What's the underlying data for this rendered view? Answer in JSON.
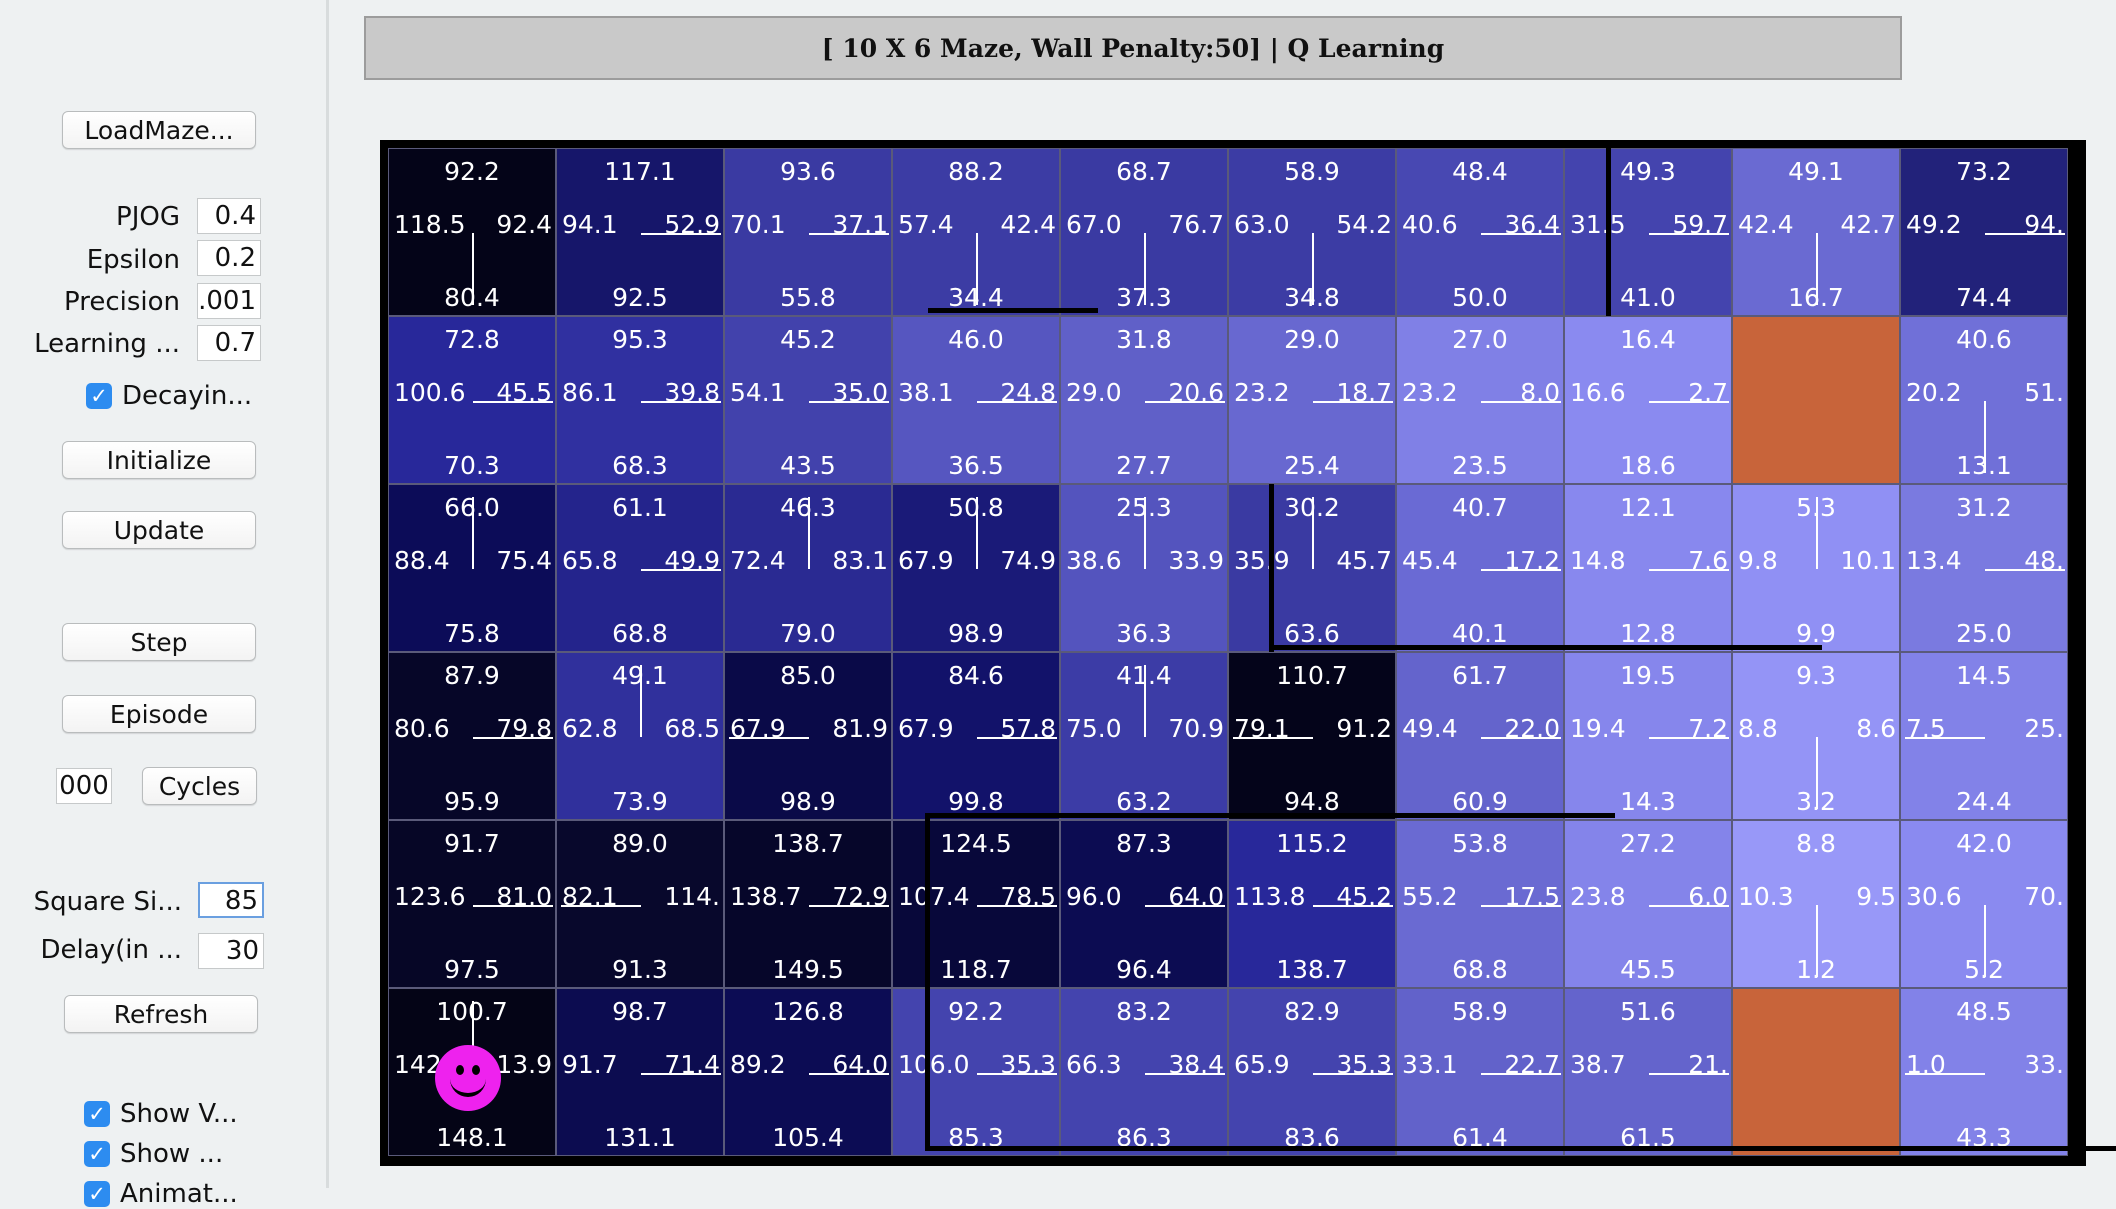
{
  "controls": {
    "load_maze": "LoadMaze...",
    "params": [
      {
        "label": "PJOG",
        "value": "0.4"
      },
      {
        "label": "Epsilon",
        "value": "0.2"
      },
      {
        "label": "Precision",
        "value": ".001"
      },
      {
        "label": "Learning ...",
        "value": "0.7"
      }
    ],
    "decaying_label": "Decayin...",
    "initialize": "Initialize",
    "update": "Update",
    "step": "Step",
    "episode": "Episode",
    "cycles_value": "000",
    "cycles": "Cycles",
    "square_size_label": "Square Si...",
    "square_size_value": "85",
    "delay_label": "Delay(in ...",
    "delay_value": "30",
    "refresh": "Refresh",
    "show_v_label": "Show V...",
    "show_label": "Show ...",
    "animate_label": "Animat..."
  },
  "maze": {
    "title": "[ 10 X 6 Maze, Wall Penalty:50] |  Q Learning",
    "cols": 10,
    "rows": 6,
    "agent": {
      "row": 5,
      "col": 0
    },
    "goal_color": "#c8643a",
    "cells": [
      [
        {
          "n": "92.2",
          "w": "118.5",
          "e": "92.4",
          "s": "80.4",
          "color": "#040418",
          "policy": "S"
        },
        {
          "n": "117.1",
          "w": "94.1",
          "e": "52.9",
          "s": "92.5",
          "color": "#16166a",
          "policy": "E"
        },
        {
          "n": "93.6",
          "w": "70.1",
          "e": "37.1",
          "s": "55.8",
          "color": "#3a3aa2",
          "policy": "E"
        },
        {
          "n": "88.2",
          "w": "57.4",
          "e": "42.4",
          "s": "34.4",
          "color": "#3c3ca4",
          "policy": "S"
        },
        {
          "n": "68.7",
          "w": "67.0",
          "e": "76.7",
          "s": "37.3",
          "color": "#3a3aa2",
          "policy": "S"
        },
        {
          "n": "58.9",
          "w": "63.0",
          "e": "54.2",
          "s": "34.8",
          "color": "#3c3ca4",
          "policy": "S"
        },
        {
          "n": "48.4",
          "w": "40.6",
          "e": "36.4",
          "s": "50.0",
          "color": "#4848b2",
          "policy": "E"
        },
        {
          "n": "49.3",
          "w": "31.5",
          "e": "59.7",
          "s": "41.0",
          "color": "#4444ae",
          "policy": "E"
        },
        {
          "n": "49.1",
          "w": "42.4",
          "e": "42.7",
          "s": "16.7",
          "color": "#6a6ad2",
          "policy": "S"
        },
        {
          "n": "73.2",
          "w": "49.2",
          "e": "94.",
          "s": "74.4",
          "color": "#22227a",
          "policy": "E"
        }
      ],
      [
        {
          "n": "72.8",
          "w": "100.6",
          "e": "45.5",
          "s": "70.3",
          "color": "#28289a",
          "policy": "E"
        },
        {
          "n": "95.3",
          "w": "86.1",
          "e": "39.8",
          "s": "68.3",
          "color": "#3030a0",
          "policy": "E"
        },
        {
          "n": "45.2",
          "w": "54.1",
          "e": "35.0",
          "s": "43.5",
          "color": "#4242ac",
          "policy": "E"
        },
        {
          "n": "46.0",
          "w": "38.1",
          "e": "24.8",
          "s": "36.5",
          "color": "#5656c0",
          "policy": "E"
        },
        {
          "n": "31.8",
          "w": "29.0",
          "e": "20.6",
          "s": "27.7",
          "color": "#6060c8",
          "policy": "E"
        },
        {
          "n": "29.0",
          "w": "23.2",
          "e": "18.7",
          "s": "25.4",
          "color": "#6868d0",
          "policy": "E"
        },
        {
          "n": "27.0",
          "w": "23.2",
          "e": "8.0",
          "s": "23.5",
          "color": "#8080e6",
          "policy": "E"
        },
        {
          "n": "16.4",
          "w": "16.6",
          "e": "2.7",
          "s": "18.6",
          "color": "#8a8af0",
          "policy": "E"
        },
        {
          "goal": true
        },
        {
          "n": "40.6",
          "w": "20.2",
          "e": "51.",
          "s": "13.1",
          "color": "#7070d8",
          "policy": "S"
        }
      ],
      [
        {
          "n": "66.0",
          "w": "88.4",
          "e": "75.4",
          "s": "75.8",
          "color": "#0c0c58",
          "policy": "N"
        },
        {
          "n": "61.1",
          "w": "65.8",
          "e": "49.9",
          "s": "68.8",
          "color": "#24248c",
          "policy": "E"
        },
        {
          "n": "46.3",
          "w": "72.4",
          "e": "83.1",
          "s": "79.0",
          "color": "#2a2a92",
          "policy": "N"
        },
        {
          "n": "50.8",
          "w": "67.9",
          "e": "74.9",
          "s": "98.9",
          "color": "#1a1a78",
          "policy": "N"
        },
        {
          "n": "25.3",
          "w": "38.6",
          "e": "33.9",
          "s": "36.3",
          "color": "#5454be",
          "policy": "N"
        },
        {
          "n": "30.2",
          "w": "35.9",
          "e": "45.7",
          "s": "63.6",
          "color": "#3a3aa2",
          "policy": "N"
        },
        {
          "n": "40.7",
          "w": "45.4",
          "e": "17.2",
          "s": "40.1",
          "color": "#6a6ad4",
          "policy": "E"
        },
        {
          "n": "12.1",
          "w": "14.8",
          "e": "7.6",
          "s": "12.8",
          "color": "#8888ee",
          "policy": "E"
        },
        {
          "n": "5.3",
          "w": "9.8",
          "e": "10.1",
          "s": "9.9",
          "color": "#9090f4",
          "policy": "N"
        },
        {
          "n": "31.2",
          "w": "13.4",
          "e": "48.",
          "s": "25.0",
          "color": "#7a7ae0",
          "policy": "E"
        }
      ],
      [
        {
          "n": "87.9",
          "w": "80.6",
          "e": "79.8",
          "s": "95.9",
          "color": "#060628",
          "policy": "E"
        },
        {
          "n": "49.1",
          "w": "62.8",
          "e": "68.5",
          "s": "73.9",
          "color": "#30309c",
          "policy": "N"
        },
        {
          "n": "85.0",
          "w": "67.9",
          "e": "81.9",
          "s": "98.9",
          "color": "#0a0a48",
          "policy": "W"
        },
        {
          "n": "84.6",
          "w": "67.9",
          "e": "57.8",
          "s": "99.8",
          "color": "#12126a",
          "policy": "E"
        },
        {
          "n": "41.4",
          "w": "75.0",
          "e": "70.9",
          "s": "63.2",
          "color": "#3c3ca6",
          "policy": "N"
        },
        {
          "n": "110.7",
          "w": "79.1",
          "e": "91.2",
          "s": "94.8",
          "color": "#04041a",
          "policy": "W"
        },
        {
          "n": "61.7",
          "w": "49.4",
          "e": "22.0",
          "s": "60.9",
          "color": "#6464cc",
          "policy": "E"
        },
        {
          "n": "19.5",
          "w": "19.4",
          "e": "7.2",
          "s": "14.3",
          "color": "#8686ec",
          "policy": "E"
        },
        {
          "n": "9.3",
          "w": "8.8",
          "e": "8.6",
          "s": "3.2",
          "color": "#9494f6",
          "policy": "S"
        },
        {
          "n": "14.5",
          "w": "7.5",
          "e": "25.",
          "s": "24.4",
          "color": "#8282e8",
          "policy": "W"
        }
      ],
      [
        {
          "n": "91.7",
          "w": "123.6",
          "e": "81.0",
          "s": "97.5",
          "color": "#060626",
          "policy": "E"
        },
        {
          "n": "89.0",
          "w": "82.1",
          "e": "114.",
          "s": "91.3",
          "color": "#08082c",
          "policy": "W"
        },
        {
          "n": "138.7",
          "w": "138.7",
          "e": "72.9",
          "s": "149.5",
          "color": "#06062a",
          "policy": "E"
        },
        {
          "n": "124.5",
          "w": "107.4",
          "e": "78.5",
          "s": "118.7",
          "color": "#08083a",
          "policy": "E"
        },
        {
          "n": "87.3",
          "w": "96.0",
          "e": "64.0",
          "s": "96.4",
          "color": "#0c0c52",
          "policy": "E"
        },
        {
          "n": "115.2",
          "w": "113.8",
          "e": "45.2",
          "s": "138.7",
          "color": "#28289a",
          "policy": "E"
        },
        {
          "n": "53.8",
          "w": "55.2",
          "e": "17.5",
          "s": "68.8",
          "color": "#6a6ad2",
          "policy": "E"
        },
        {
          "n": "27.2",
          "w": "23.8",
          "e": "6.0",
          "s": "45.5",
          "color": "#8484ea",
          "policy": "E"
        },
        {
          "n": "8.8",
          "w": "10.3",
          "e": "9.5",
          "s": "1.2",
          "color": "#9898f8",
          "policy": "S"
        },
        {
          "n": "42.0",
          "w": "30.6",
          "e": "70.",
          "s": "5.2",
          "color": "#8a8af0",
          "policy": "S"
        }
      ],
      [
        {
          "n": "100.7",
          "w": "142",
          "e": "113.9",
          "s": "148.1",
          "color": "#040416",
          "policy": "N"
        },
        {
          "n": "98.7",
          "w": "91.7",
          "e": "71.4",
          "s": "131.1",
          "color": "#0c0c50",
          "policy": "E"
        },
        {
          "n": "126.8",
          "w": "89.2",
          "e": "64.0",
          "s": "105.4",
          "color": "#0c0c54",
          "policy": "E"
        },
        {
          "n": "92.2",
          "w": "106.0",
          "e": "35.3",
          "s": "85.3",
          "color": "#4444ae",
          "policy": "E"
        },
        {
          "n": "83.2",
          "w": "66.3",
          "e": "38.4",
          "s": "86.3",
          "color": "#4444ae",
          "policy": "E"
        },
        {
          "n": "82.9",
          "w": "65.9",
          "e": "35.3",
          "s": "83.6",
          "color": "#4444ae",
          "policy": "E"
        },
        {
          "n": "58.9",
          "w": "33.1",
          "e": "22.7",
          "s": "61.4",
          "color": "#6262ca",
          "policy": "E"
        },
        {
          "n": "51.6",
          "w": "38.7",
          "e": "21.",
          "s": "61.5",
          "color": "#6464cc",
          "policy": "E"
        },
        {
          "goal": true
        },
        {
          "n": "48.5",
          "w": "1.0",
          "e": "33.",
          "s": "43.3",
          "color": "#8282e8",
          "policy": "W"
        }
      ]
    ]
  }
}
